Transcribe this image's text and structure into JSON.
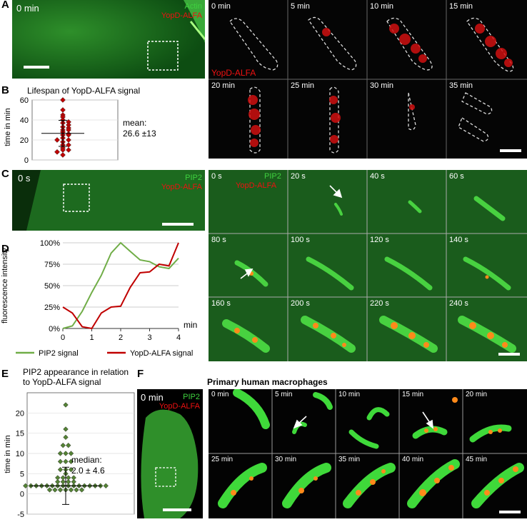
{
  "panelA": {
    "letter": "A",
    "overview_time": "0 min",
    "ch_actin": "Actin",
    "ch_yopd": "YopD-ALFA",
    "series_label": "YopD-ALFA",
    "frames": [
      "0 min",
      "5 min",
      "10 min",
      "15 min",
      "20 min",
      "25 min",
      "30 min",
      "35 min"
    ]
  },
  "panelB": {
    "letter": "B",
    "title": "Lifespan of YopD-ALFA signal",
    "ylabel": "time in min",
    "mean_line1": "mean:",
    "mean_line2": "26.6 ±13"
  },
  "panelC": {
    "letter": "C",
    "overview_time": "0 s",
    "ch_pip2": "PIP2",
    "ch_yopd": "YopD-ALFA",
    "frames": [
      "0 s",
      "20 s",
      "40 s",
      "60 s",
      "80 s",
      "100 s",
      "120 s",
      "140 s",
      "160 s",
      "200 s",
      "220 s",
      "240 s"
    ]
  },
  "panelD": {
    "letter": "D",
    "ylabel": "fluorescence intensity",
    "xunit": "min"
  },
  "panelE": {
    "letter": "E",
    "title_line1": "PIP2 appearance in relation",
    "title_line2": "to YopD-ALFA signal",
    "ylabel": "time in min",
    "median_line1": "median:",
    "median_line2": "2.0 ± 4.6"
  },
  "panelF": {
    "letter": "F",
    "heading": "Primary human macrophages",
    "overview_time": "0 min",
    "ch_pip2": "PIP2",
    "ch_yopd": "YopD-ALFA",
    "frames": [
      "0 min",
      "5 min",
      "10 min",
      "15 min",
      "20 min",
      "25 min",
      "30 min",
      "35 min",
      "40 min",
      "45 min"
    ]
  },
  "chart_data": [
    {
      "type": "scatter",
      "panel": "B",
      "title": "Lifespan of YopD-ALFA signal",
      "ylabel": "time in min",
      "ylim": [
        0,
        60
      ],
      "yticks": [
        0,
        20,
        40,
        60
      ],
      "mean": 26.6,
      "sd": 13,
      "points": [
        60,
        50,
        45,
        43,
        40,
        38,
        37,
        35,
        33,
        32,
        30,
        30,
        28,
        26,
        25,
        25,
        22,
        20,
        20,
        18,
        15,
        15,
        12,
        10,
        10,
        8,
        5
      ]
    },
    {
      "type": "line",
      "panel": "D",
      "ylabel": "fluorescence intensity",
      "xunit": "min",
      "xlim": [
        0,
        4
      ],
      "ylim": [
        0,
        100
      ],
      "xticks": [
        0,
        1,
        2,
        3,
        4
      ],
      "yticks": [
        "0%",
        "25%",
        "50%",
        "75%",
        "100%"
      ],
      "series": [
        {
          "name": "PIP2 signal",
          "color": "#70ad47",
          "x": [
            0,
            0.33,
            0.67,
            1,
            1.33,
            1.67,
            2,
            2.33,
            2.67,
            3,
            3.33,
            3.67,
            4
          ],
          "y": [
            0,
            3,
            20,
            42,
            62,
            88,
            100,
            90,
            80,
            78,
            72,
            70,
            82
          ]
        },
        {
          "name": "YopD-ALFA signal",
          "color": "#c00000",
          "x": [
            0,
            0.33,
            0.67,
            1,
            1.33,
            1.67,
            2,
            2.33,
            2.67,
            3,
            3.33,
            3.67,
            4
          ],
          "y": [
            25,
            18,
            2,
            0,
            18,
            25,
            26,
            48,
            65,
            66,
            75,
            73,
            100
          ]
        }
      ]
    },
    {
      "type": "scatter",
      "panel": "E",
      "title": "PIP2 appearance in relation to YopD-ALFA signal",
      "ylabel": "time in min",
      "ylim": [
        -5,
        25
      ],
      "yticks": [
        -5,
        0,
        5,
        10,
        15,
        20
      ],
      "median": 2.0,
      "sd": 4.6,
      "points": [
        22,
        16,
        14,
        12,
        12,
        10,
        10,
        10,
        8,
        8,
        8,
        6,
        6,
        6,
        5,
        4,
        4,
        4,
        4,
        3,
        3,
        3,
        3,
        2,
        2,
        2,
        2,
        2,
        2,
        2,
        2,
        2,
        2,
        2,
        2,
        2,
        2,
        2,
        2,
        1,
        1,
        1,
        1,
        1,
        1,
        1
      ]
    }
  ]
}
